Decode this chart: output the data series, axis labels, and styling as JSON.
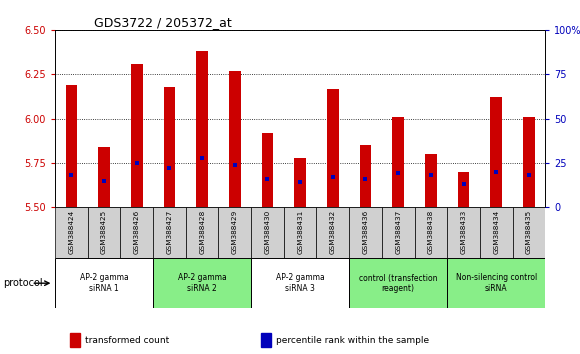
{
  "title": "GDS3722 / 205372_at",
  "samples": [
    "GSM388424",
    "GSM388425",
    "GSM388426",
    "GSM388427",
    "GSM388428",
    "GSM388429",
    "GSM388430",
    "GSM388431",
    "GSM388432",
    "GSM388436",
    "GSM388437",
    "GSM388438",
    "GSM388433",
    "GSM388434",
    "GSM388435"
  ],
  "transformed_count": [
    6.19,
    5.84,
    6.31,
    6.18,
    6.38,
    6.27,
    5.92,
    5.78,
    6.17,
    5.85,
    6.01,
    5.8,
    5.7,
    6.12,
    6.01
  ],
  "percentile_rank": [
    18,
    15,
    25,
    22,
    28,
    24,
    16,
    14,
    17,
    16,
    19,
    18,
    13,
    20,
    18
  ],
  "bar_bottom": 5.5,
  "ylim_left": [
    5.5,
    6.5
  ],
  "ylim_right": [
    0,
    100
  ],
  "yticks_left": [
    5.5,
    5.75,
    6.0,
    6.25,
    6.5
  ],
  "yticks_right": [
    0,
    25,
    50,
    75,
    100
  ],
  "bar_color": "#cc0000",
  "dot_color": "#0000bb",
  "bg_color": "#ffffff",
  "tick_bg": "#d0d0d0",
  "groups": [
    {
      "label": "AP-2 gamma\nsiRNA 1",
      "start": 0,
      "end": 3,
      "color": "#ffffff"
    },
    {
      "label": "AP-2 gamma\nsiRNA 2",
      "start": 3,
      "end": 6,
      "color": "#88ee88"
    },
    {
      "label": "AP-2 gamma\nsiRNA 3",
      "start": 6,
      "end": 9,
      "color": "#ffffff"
    },
    {
      "label": "control (transfection\nreagent)",
      "start": 9,
      "end": 12,
      "color": "#88ee88"
    },
    {
      "label": "Non-silencing control\nsiRNA",
      "start": 12,
      "end": 15,
      "color": "#88ee88"
    }
  ],
  "legend_labels": [
    "transformed count",
    "percentile rank within the sample"
  ],
  "legend_colors": [
    "#cc0000",
    "#0000bb"
  ],
  "xlabel_protocol": "protocol",
  "left_axis_color": "#cc0000",
  "right_axis_color": "#0000bb",
  "bar_width": 0.35,
  "dot_size": 10
}
